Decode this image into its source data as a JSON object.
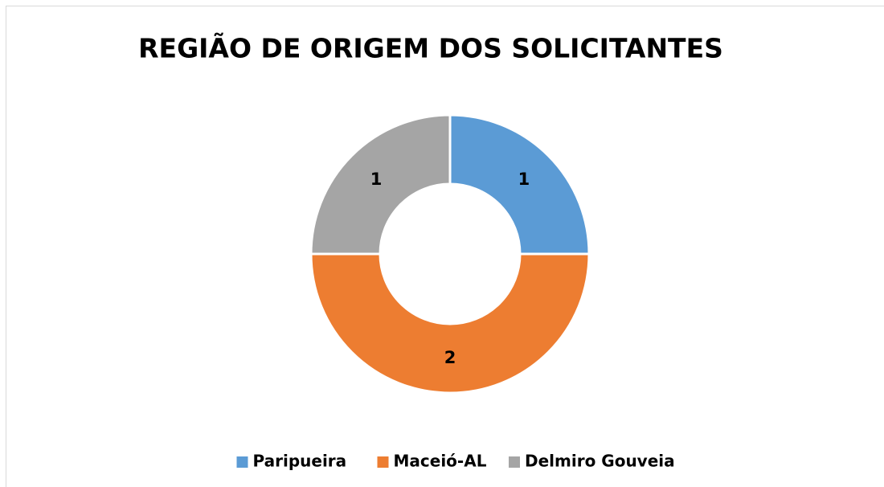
{
  "chart_data": {
    "type": "donut",
    "title": "REGIÃO DE ORIGEM DOS SOLICITANTES",
    "categories": [
      "Paripueira",
      "Maceió-AL",
      "Delmiro Gouveia"
    ],
    "values": [
      1,
      2,
      1
    ],
    "colors": [
      "#5b9bd5",
      "#ed7d31",
      "#a5a5a5"
    ],
    "legend": "bottom"
  }
}
